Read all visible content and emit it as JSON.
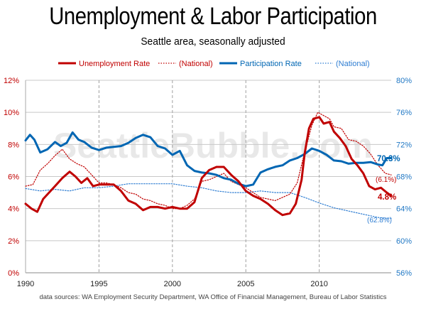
{
  "chart_data": {
    "type": "line",
    "title": "Unemployment & Labor Participation",
    "subtitle": "Seattle area, seasonally adjusted",
    "legend_placement": "top",
    "legend": [
      {
        "label": "Unemployment Rate",
        "series": "seattle_unemployment"
      },
      {
        "label": "(National)",
        "series": "national_unemployment"
      },
      {
        "label": "Participation Rate",
        "series": "seattle_participation"
      },
      {
        "label": "(National)",
        "series": "national_participation"
      }
    ],
    "x_range": [
      1990,
      2014.9
    ],
    "x_ticks": [
      "1990",
      "1995",
      "2000",
      "2005",
      "2010"
    ],
    "y_left": {
      "range": [
        0,
        12
      ],
      "ticks": [
        "0%",
        "2%",
        "4%",
        "6%",
        "8%",
        "10%",
        "12%"
      ],
      "color": "#c00000"
    },
    "y_right": {
      "range": [
        56,
        80
      ],
      "ticks": [
        "56%",
        "60%",
        "64%",
        "68%",
        "72%",
        "76%",
        "80%"
      ],
      "color": "#1f77c4"
    },
    "grid": true,
    "colors": {
      "unemployment": "#c00000",
      "participation": "#0066b3",
      "national_participation": "#2e7dd2"
    },
    "watermark": "SeattleBubble.com",
    "annotations": {
      "participation_end": "70.3%",
      "unemployment_end": "4.8%",
      "national_unemployment_end": "(6.1%)",
      "national_participation_end": "(62.8%)"
    },
    "source": "data sources: WA Employment Security Department,  WA Office of Financial Management,  Bureau of Labor Statistics",
    "series": [
      {
        "id": "seattle_unemployment",
        "name": "Unemployment Rate",
        "axis": "left",
        "style": "solid",
        "x": [
          1990.0,
          1990.4,
          1990.8,
          1991.2,
          1991.6,
          1992.0,
          1992.5,
          1993.0,
          1993.4,
          1993.8,
          1994.2,
          1994.6,
          1995.0,
          1995.5,
          1996.0,
          1996.5,
          1997.0,
          1997.5,
          1998.0,
          1998.5,
          1999.0,
          1999.5,
          2000.0,
          2000.5,
          2001.0,
          2001.5,
          2002.0,
          2002.5,
          2003.0,
          2003.5,
          2004.0,
          2004.5,
          2005.0,
          2005.5,
          2006.0,
          2006.5,
          2007.0,
          2007.5,
          2008.0,
          2008.4,
          2008.8,
          2009.0,
          2009.3,
          2009.6,
          2010.0,
          2010.3,
          2010.7,
          2011.0,
          2011.4,
          2011.8,
          2012.2,
          2012.6,
          2013.0,
          2013.4,
          2013.8,
          2014.2,
          2014.6,
          2014.9
        ],
        "values": [
          4.3,
          4.0,
          3.8,
          4.6,
          5.0,
          5.4,
          5.9,
          6.3,
          6.0,
          5.6,
          5.9,
          5.4,
          5.5,
          5.5,
          5.5,
          5.1,
          4.5,
          4.3,
          3.9,
          4.1,
          4.1,
          4.0,
          4.1,
          4.0,
          4.0,
          4.4,
          5.9,
          6.4,
          6.6,
          6.6,
          6.1,
          5.7,
          5.1,
          4.8,
          4.6,
          4.3,
          3.9,
          3.6,
          3.7,
          4.3,
          5.8,
          7.4,
          9.0,
          9.6,
          9.7,
          9.3,
          9.4,
          8.8,
          8.4,
          7.9,
          7.1,
          6.7,
          6.2,
          5.4,
          5.2,
          5.3,
          5.0,
          4.8
        ]
      },
      {
        "id": "national_unemployment",
        "name": "(National)",
        "axis": "left",
        "style": "dotted",
        "x": [
          1990.0,
          1990.5,
          1991.0,
          1991.5,
          1992.0,
          1992.5,
          1993.0,
          1993.5,
          1994.0,
          1994.5,
          1995.0,
          1995.5,
          1996.0,
          1996.5,
          1997.0,
          1997.5,
          1998.0,
          1998.5,
          1999.0,
          1999.5,
          2000.0,
          2000.5,
          2001.0,
          2001.5,
          2002.0,
          2002.5,
          2003.0,
          2003.5,
          2004.0,
          2004.5,
          2005.0,
          2005.5,
          2006.0,
          2006.5,
          2007.0,
          2007.5,
          2008.0,
          2008.5,
          2009.0,
          2009.5,
          2009.9,
          2010.3,
          2010.7,
          2011.0,
          2011.5,
          2012.0,
          2012.5,
          2013.0,
          2013.5,
          2014.0,
          2014.5,
          2014.9
        ],
        "values": [
          5.4,
          5.5,
          6.4,
          6.8,
          7.3,
          7.7,
          7.1,
          6.8,
          6.6,
          6.1,
          5.6,
          5.6,
          5.5,
          5.3,
          5.0,
          4.9,
          4.6,
          4.5,
          4.3,
          4.2,
          4.0,
          4.0,
          4.2,
          4.6,
          5.7,
          5.8,
          6.0,
          6.2,
          5.7,
          5.5,
          5.3,
          5.0,
          4.7,
          4.6,
          4.5,
          4.7,
          4.9,
          5.6,
          7.5,
          9.2,
          10.0,
          9.8,
          9.6,
          9.1,
          9.0,
          8.3,
          8.2,
          7.9,
          7.4,
          6.7,
          6.2,
          6.1
        ]
      },
      {
        "id": "seattle_participation",
        "name": "Participation Rate",
        "axis": "right",
        "style": "solid",
        "x": [
          1990.0,
          1990.3,
          1990.6,
          1991.0,
          1991.5,
          1992.0,
          1992.4,
          1992.8,
          1993.2,
          1993.6,
          1994.0,
          1994.5,
          1995.0,
          1995.5,
          1996.0,
          1996.5,
          1997.0,
          1997.5,
          1998.0,
          1998.5,
          1999.0,
          1999.5,
          2000.0,
          2000.5,
          2001.0,
          2001.5,
          2002.0,
          2002.5,
          2003.0,
          2003.5,
          2004.0,
          2004.5,
          2005.0,
          2005.5,
          2006.0,
          2006.5,
          2007.0,
          2007.5,
          2008.0,
          2008.5,
          2009.0,
          2009.5,
          2010.0,
          2010.5,
          2011.0,
          2011.5,
          2012.0,
          2012.5,
          2013.0,
          2013.5,
          2014.0,
          2014.3,
          2014.6,
          2014.9
        ],
        "values": [
          72.5,
          73.2,
          72.6,
          71.0,
          71.4,
          72.3,
          71.8,
          72.2,
          73.5,
          72.6,
          72.3,
          71.6,
          71.3,
          71.6,
          71.7,
          71.8,
          72.2,
          72.8,
          73.2,
          72.9,
          71.8,
          71.5,
          70.7,
          71.2,
          69.4,
          68.7,
          68.5,
          68.4,
          68.2,
          67.8,
          67.6,
          67.1,
          66.8,
          67.0,
          68.5,
          68.9,
          69.2,
          69.4,
          70.0,
          70.3,
          70.8,
          71.5,
          71.2,
          70.7,
          70.0,
          69.9,
          69.6,
          69.7,
          69.7,
          69.8,
          69.5,
          69.4,
          70.3,
          70.3
        ]
      },
      {
        "id": "national_participation",
        "name": "(National)",
        "axis": "right",
        "style": "dotted",
        "x": [
          1990.0,
          1991.0,
          1992.0,
          1993.0,
          1994.0,
          1995.0,
          1996.0,
          1997.0,
          1998.0,
          1999.0,
          2000.0,
          2001.0,
          2002.0,
          2003.0,
          2004.0,
          2005.0,
          2006.0,
          2007.0,
          2008.0,
          2009.0,
          2010.0,
          2011.0,
          2012.0,
          2013.0,
          2014.0,
          2014.5,
          2014.9
        ],
        "values": [
          66.5,
          66.2,
          66.4,
          66.2,
          66.6,
          66.6,
          66.8,
          67.1,
          67.1,
          67.1,
          67.1,
          66.8,
          66.6,
          66.2,
          66.0,
          66.0,
          66.2,
          66.0,
          66.0,
          65.4,
          64.7,
          64.1,
          63.7,
          63.3,
          62.9,
          62.8,
          62.8
        ]
      }
    ]
  }
}
